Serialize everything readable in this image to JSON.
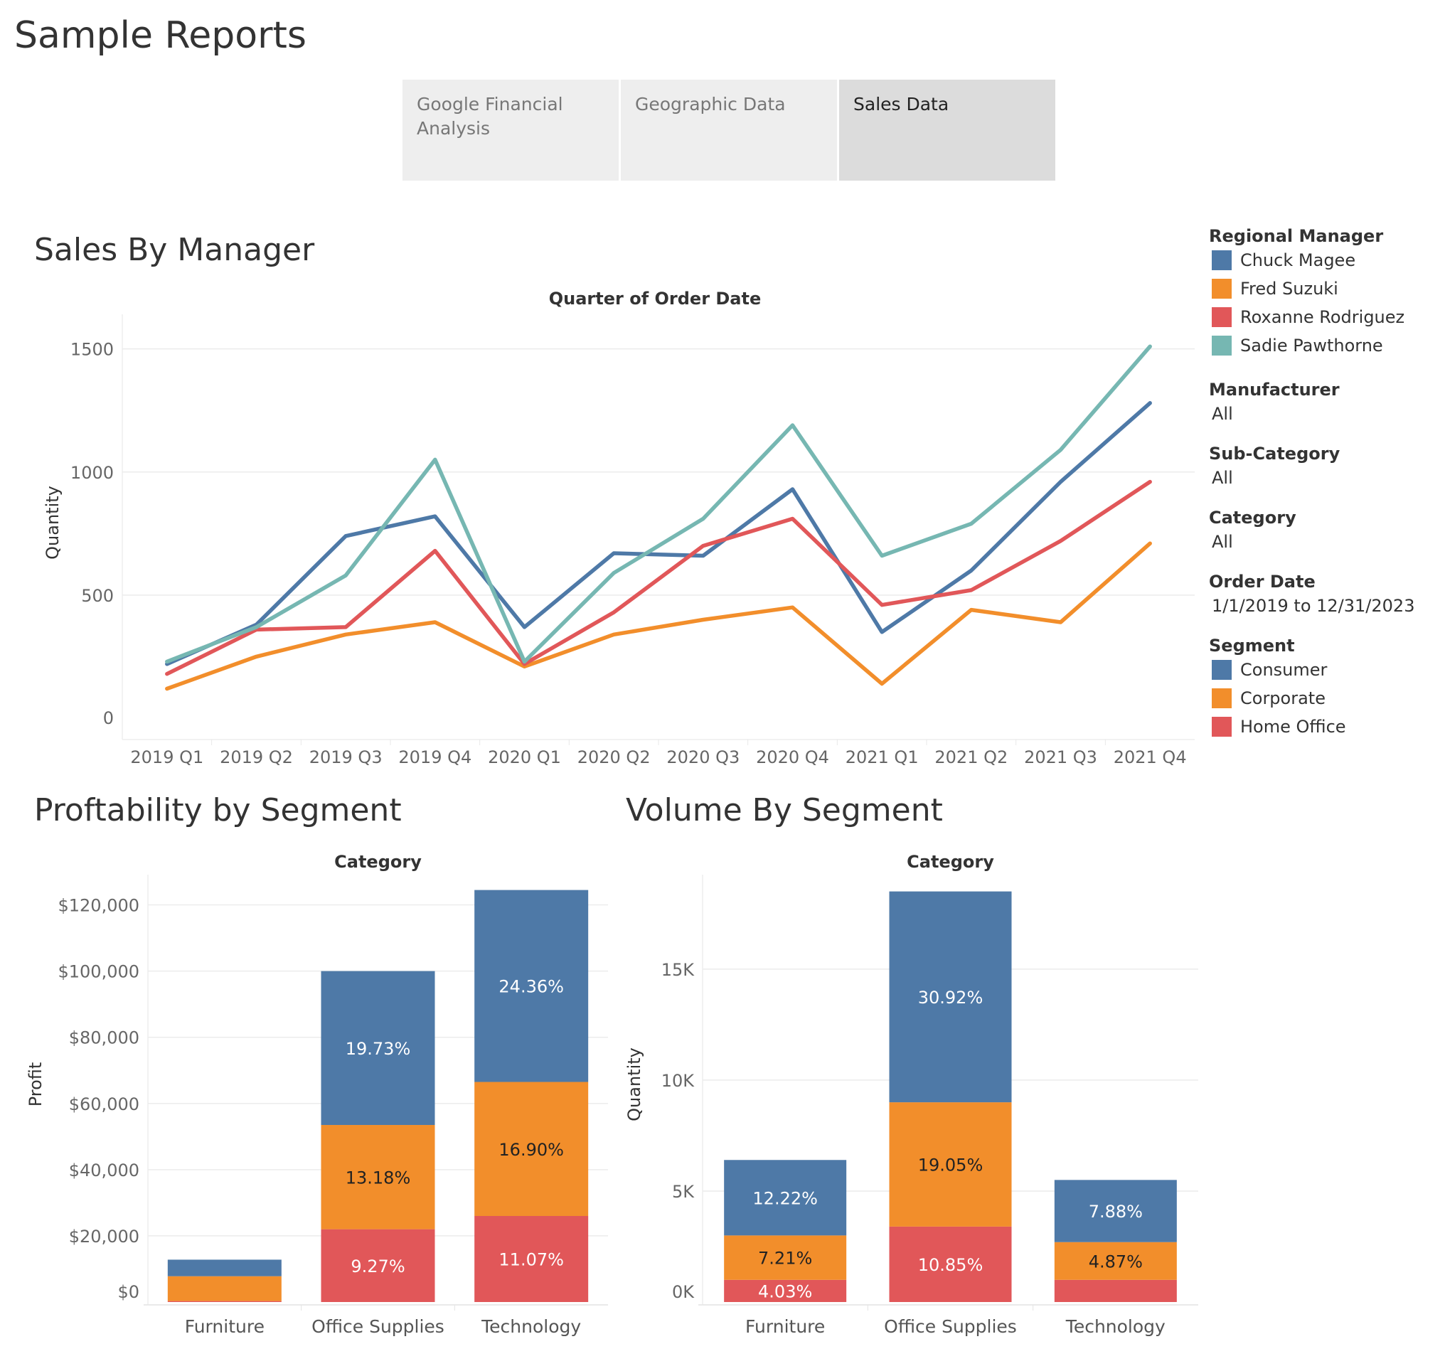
{
  "page": {
    "title": "Sample Reports"
  },
  "tabs": [
    {
      "label": "Google Financial Analysis",
      "active": false
    },
    {
      "label": "Geographic Data",
      "active": false
    },
    {
      "label": "Sales Data",
      "active": true
    }
  ],
  "colors": {
    "Chuck Magee": "#4e79a7",
    "Fred Suzuki": "#f28e2b",
    "Roxanne Rodriguez": "#e15759",
    "Sadie Pawthorne": "#76b7b2",
    "Consumer": "#4e79a7",
    "Corporate": "#f28e2b",
    "Home Office": "#e15759"
  },
  "filters": {
    "regional_manager": {
      "title": "Regional Manager",
      "items": [
        "Chuck Magee",
        "Fred Suzuki",
        "Roxanne Rodriguez",
        "Sadie Pawthorne"
      ]
    },
    "manufacturer": {
      "title": "Manufacturer",
      "value": "All"
    },
    "sub_category": {
      "title": "Sub-Category",
      "value": "All"
    },
    "category": {
      "title": "Category",
      "value": "All"
    },
    "order_date": {
      "title": "Order Date",
      "value": "1/1/2019 to 12/31/2023"
    },
    "segment": {
      "title": "Segment",
      "items": [
        "Consumer",
        "Corporate",
        "Home Office"
      ]
    }
  },
  "chart_data": [
    {
      "id": "sales_by_manager",
      "type": "line",
      "section_title": "Sales By Manager",
      "title": "Quarter of Order Date",
      "ylabel": "Quantity",
      "ylim": [
        0,
        1600
      ],
      "yticks": [
        0,
        500,
        1000,
        1500
      ],
      "grid": true,
      "legend": "right",
      "x": [
        "2019 Q1",
        "2019 Q2",
        "2019 Q3",
        "2019 Q4",
        "2020 Q1",
        "2020 Q2",
        "2020 Q3",
        "2020 Q4",
        "2021 Q1",
        "2021 Q2",
        "2021 Q3",
        "2021 Q4"
      ],
      "series": [
        {
          "name": "Chuck Magee",
          "values": [
            220,
            380,
            740,
            820,
            370,
            670,
            660,
            930,
            350,
            600,
            960,
            1280
          ]
        },
        {
          "name": "Fred Suzuki",
          "values": [
            120,
            250,
            340,
            390,
            210,
            340,
            400,
            450,
            140,
            440,
            390,
            710
          ]
        },
        {
          "name": "Roxanne Rodriguez",
          "values": [
            180,
            360,
            370,
            680,
            220,
            430,
            700,
            810,
            460,
            520,
            720,
            960
          ]
        },
        {
          "name": "Sadie Pawthorne",
          "values": [
            230,
            370,
            580,
            1050,
            230,
            590,
            810,
            1190,
            660,
            790,
            1090,
            1510
          ]
        }
      ]
    },
    {
      "id": "profitability_by_segment",
      "type": "bar",
      "stacked": true,
      "section_title": "Proftability by Segment",
      "title": "Category",
      "ylabel": "Profit",
      "ylim": [
        0,
        130000
      ],
      "yticks": [
        0,
        20000,
        40000,
        60000,
        80000,
        100000,
        120000
      ],
      "ytick_labels": [
        "$0",
        "$20,000",
        "$40,000",
        "$60,000",
        "$80,000",
        "$100,000",
        "$120,000"
      ],
      "categories": [
        "Furniture",
        "Office Supplies",
        "Technology"
      ],
      "series": [
        {
          "name": "Home Office",
          "values": [
            300,
            22000,
            26000
          ],
          "labels": [
            "",
            "9.27%",
            "11.07%"
          ]
        },
        {
          "name": "Corporate",
          "values": [
            7500,
            31500,
            40500
          ],
          "labels": [
            "",
            "13.18%",
            "16.90%"
          ]
        },
        {
          "name": "Consumer",
          "values": [
            5000,
            46500,
            58000
          ],
          "labels": [
            "",
            "19.73%",
            "24.36%"
          ]
        }
      ]
    },
    {
      "id": "volume_by_segment",
      "type": "bar",
      "stacked": true,
      "section_title": "Volume By Segment",
      "title": "Category",
      "ylabel": "Quantity",
      "ylim": [
        0,
        19000
      ],
      "yticks": [
        0,
        5000,
        10000,
        15000
      ],
      "ytick_labels": [
        "0K",
        "5K",
        "10K",
        "15K"
      ],
      "categories": [
        "Furniture",
        "Office Supplies",
        "Technology"
      ],
      "series": [
        {
          "name": "Home Office",
          "values": [
            1000,
            3400,
            1000
          ],
          "labels": [
            "4.03%",
            "10.85%",
            ""
          ]
        },
        {
          "name": "Corporate",
          "values": [
            2000,
            5600,
            1700
          ],
          "labels": [
            "7.21%",
            "19.05%",
            "4.87%"
          ]
        },
        {
          "name": "Consumer",
          "values": [
            3400,
            9500,
            2800
          ],
          "labels": [
            "12.22%",
            "30.92%",
            "7.88%"
          ]
        }
      ]
    }
  ]
}
